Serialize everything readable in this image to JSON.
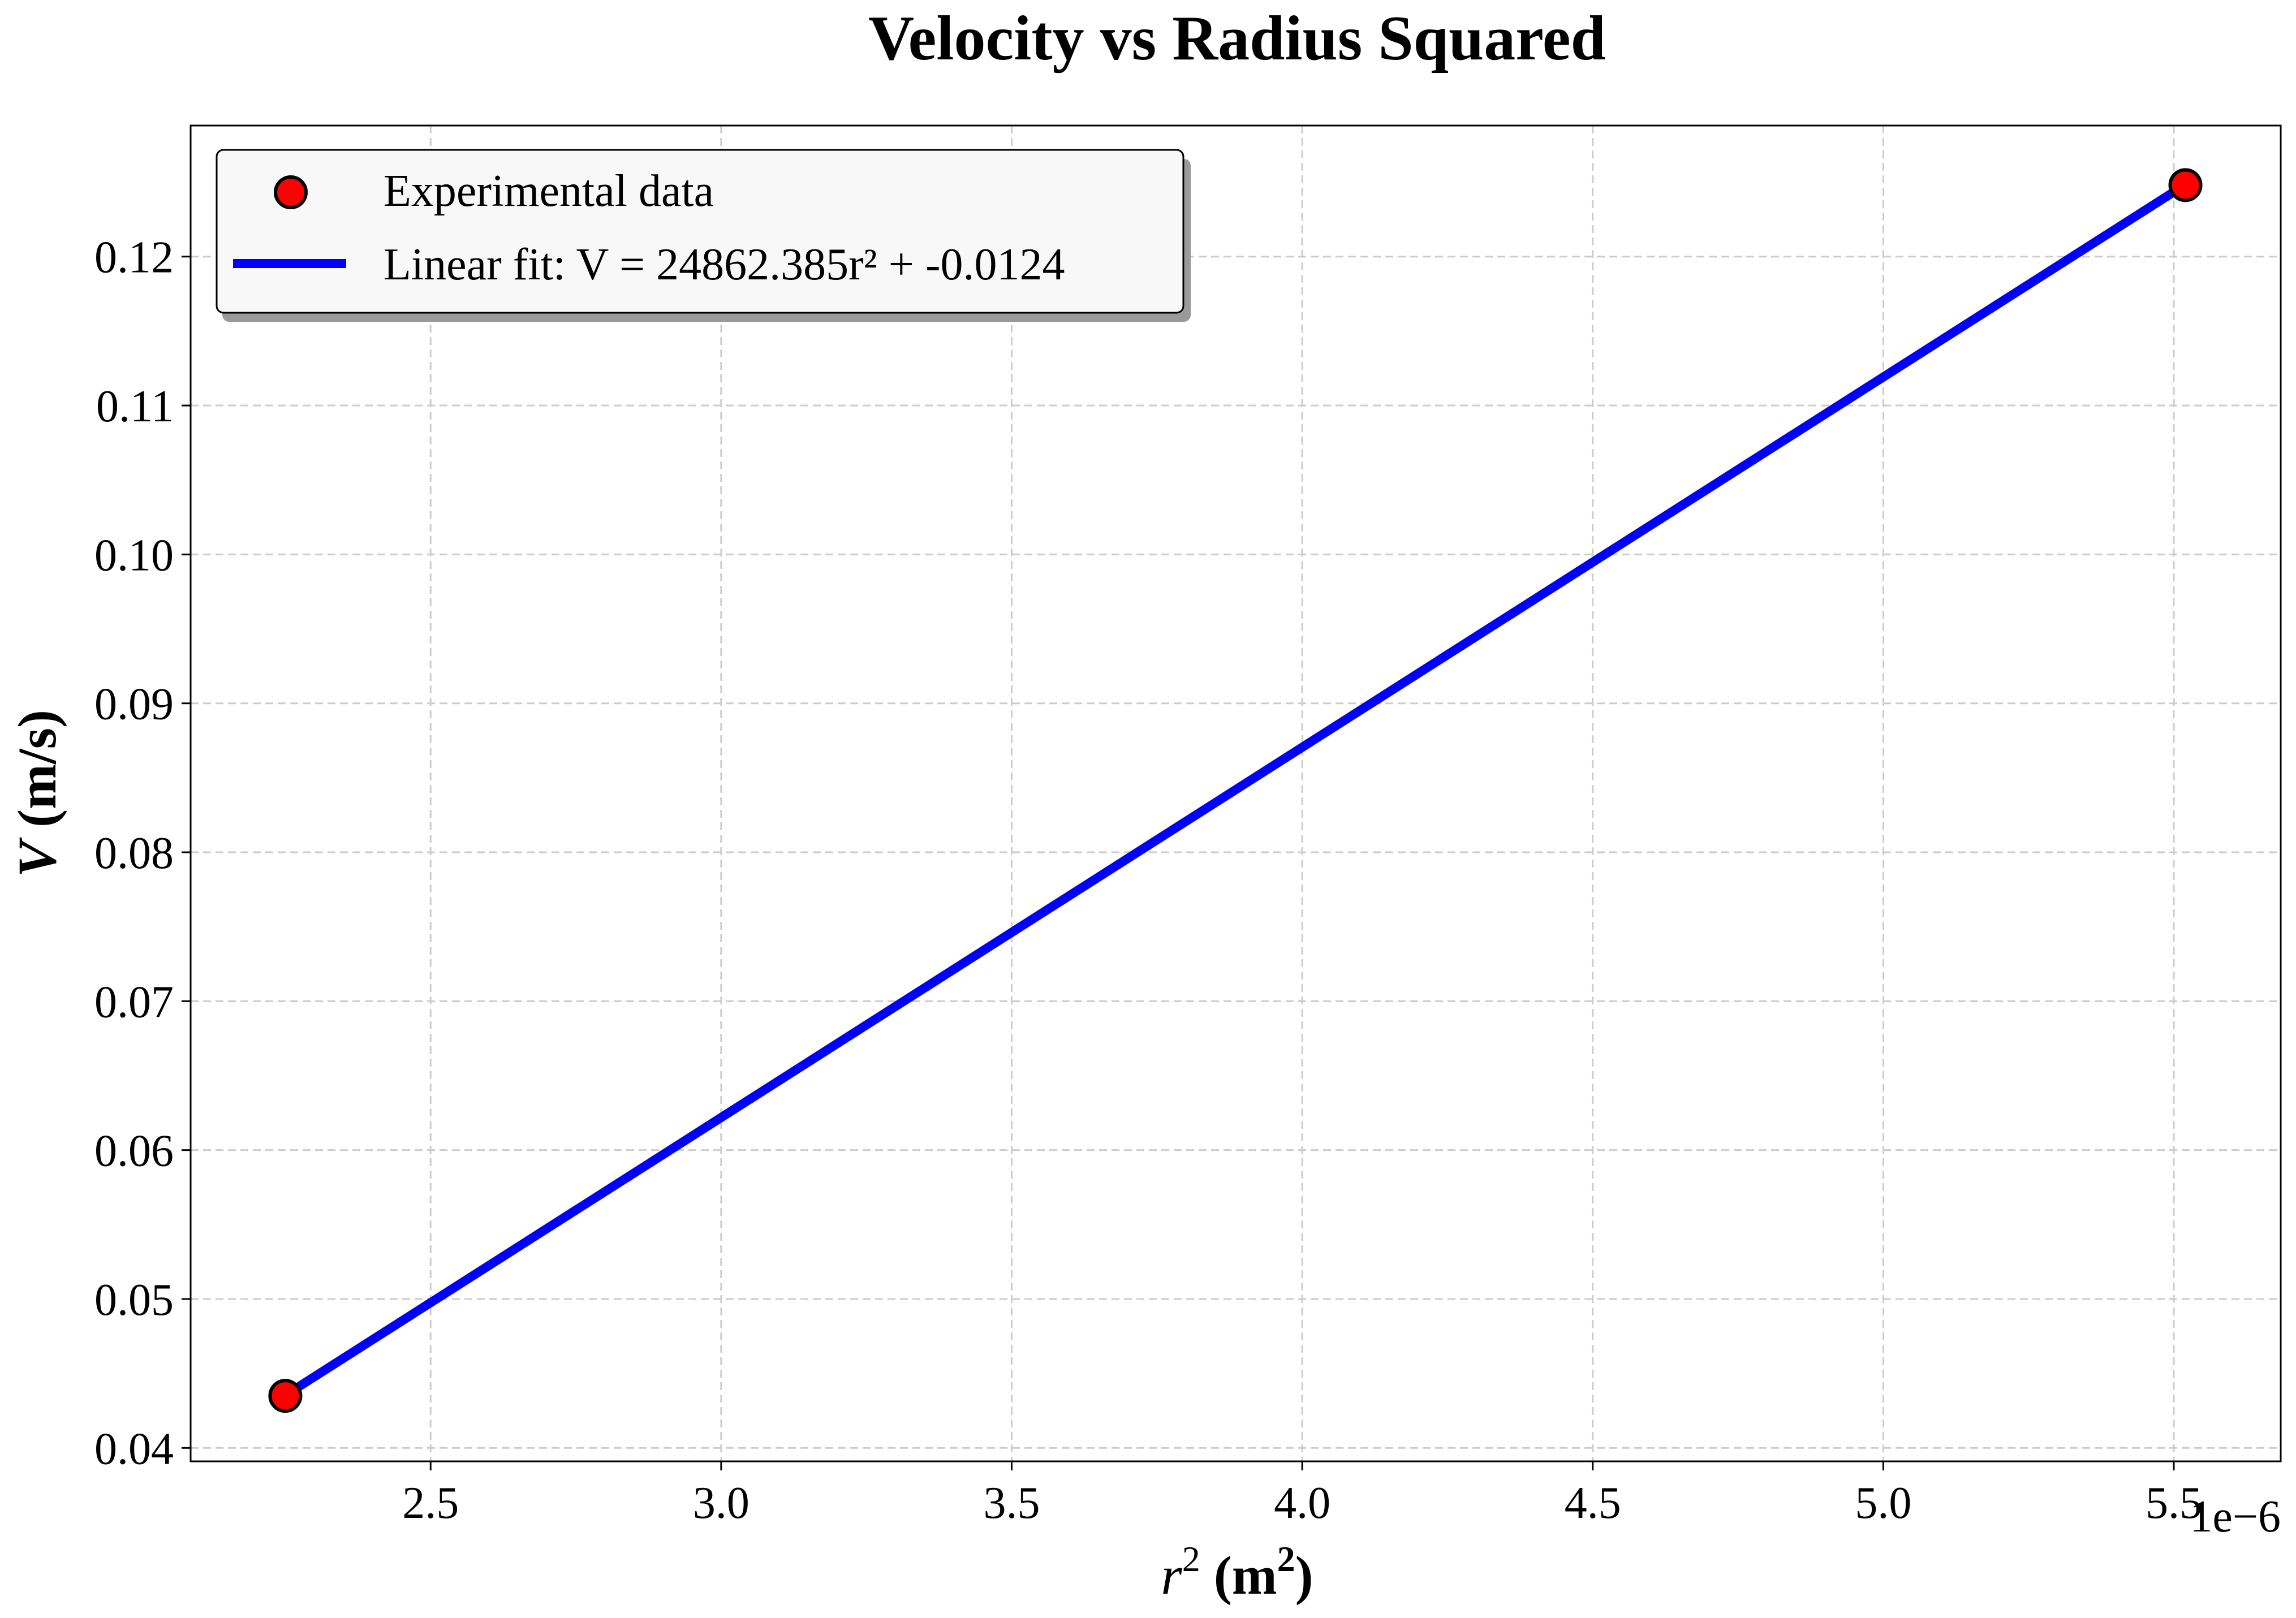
{
  "chart_data": {
    "type": "scatter",
    "title": "Velocity vs Radius Squared",
    "xlabel_var": "r",
    "xlabel_var_exp": "2",
    "xlabel_unit": "m",
    "xlabel_unit_exp": "2",
    "ylabel_var": "V",
    "ylabel_unit": "(m/s)",
    "x_offset_text": "1e−6",
    "x_scale": 1e-06,
    "xlim": [
      2.087e-06,
      5.684e-06
    ],
    "ylim": [
      0.0391,
      0.1288
    ],
    "x_ticks": [
      2.5e-06,
      3e-06,
      3.5e-06,
      4e-06,
      4.5e-06,
      5e-06,
      5.5e-06
    ],
    "x_tick_labels": [
      "2.5",
      "3.0",
      "3.5",
      "4.0",
      "4.5",
      "5.0",
      "5.5"
    ],
    "y_ticks": [
      0.04,
      0.05,
      0.06,
      0.07,
      0.08,
      0.09,
      0.1,
      0.11,
      0.12
    ],
    "y_tick_labels": [
      "0.04",
      "0.05",
      "0.06",
      "0.07",
      "0.08",
      "0.09",
      "0.10",
      "0.11",
      "0.12"
    ],
    "grid": true,
    "legend_position": "upper-left",
    "series": [
      {
        "name": "Experimental data",
        "kind": "scatter",
        "color": "#ff0000",
        "edge_color": "#000000",
        "x": [
          2.25e-06,
          5.52e-06
        ],
        "y": [
          0.0435,
          0.1248
        ]
      },
      {
        "name": "Linear fit: V = 24862.385r² + -0.0124",
        "kind": "line",
        "color": "#0000ff",
        "slope": 24862.385,
        "intercept": -0.0124,
        "x": [
          2.25e-06,
          5.52e-06
        ]
      }
    ]
  }
}
